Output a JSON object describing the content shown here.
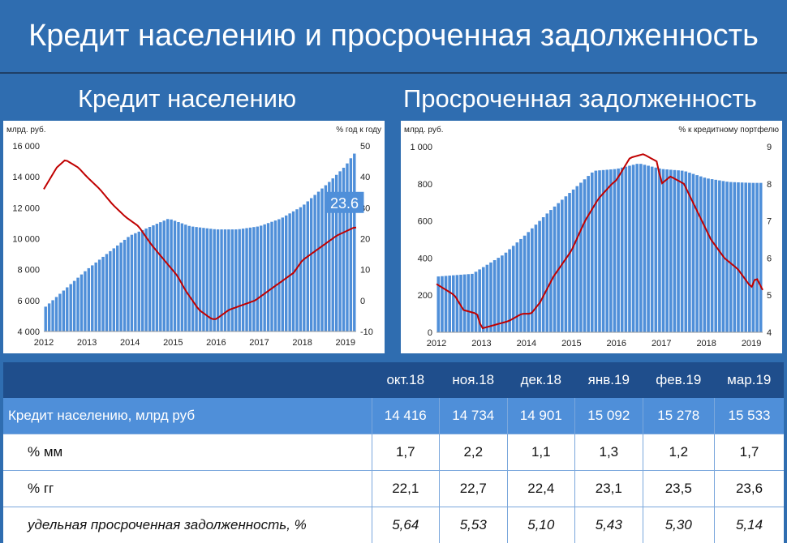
{
  "page": {
    "title": "Кредит населению и просроченная задолженность",
    "left_heading": "Кредит населению",
    "right_heading": "Просроченная задолженность"
  },
  "colors": {
    "background": "#2f6db0",
    "bars": "#4f8fd9",
    "line": "#c00000",
    "table_header": "#1f4e8c",
    "highlight_row": "#4f8fd9"
  },
  "chart_data": [
    {
      "type": "bar+line",
      "left_unit": "млрд. руб.",
      "right_unit": "% год к году",
      "y_left": {
        "min": 4000,
        "max": 16000,
        "ticks": [
          "4 000",
          "6 000",
          "8 000",
          "10 000",
          "12 000",
          "14 000",
          "16 000"
        ]
      },
      "y_right": {
        "min": -10,
        "max": 50,
        "ticks": [
          "-10",
          "0",
          "10",
          "20",
          "30",
          "40",
          "50"
        ]
      },
      "x_labels": [
        "2012",
        "2013",
        "2014",
        "2015",
        "2016",
        "2017",
        "2018",
        "2019"
      ],
      "annotation": "23.6",
      "bar_anchors": [
        [
          2012.0,
          5500
        ],
        [
          2013.0,
          8000
        ],
        [
          2014.0,
          10200
        ],
        [
          2014.9,
          11300
        ],
        [
          2015.4,
          10800
        ],
        [
          2016.0,
          10600
        ],
        [
          2016.5,
          10600
        ],
        [
          2017.0,
          10800
        ],
        [
          2017.5,
          11300
        ],
        [
          2018.0,
          12100
        ],
        [
          2018.6,
          13600
        ],
        [
          2019.0,
          14700
        ],
        [
          2019.2,
          15500
        ]
      ],
      "line_anchors": [
        [
          2012.0,
          36
        ],
        [
          2012.3,
          43
        ],
        [
          2012.5,
          45.5
        ],
        [
          2012.8,
          43
        ],
        [
          2013.0,
          40
        ],
        [
          2013.3,
          36
        ],
        [
          2013.6,
          31
        ],
        [
          2013.9,
          27
        ],
        [
          2014.2,
          24
        ],
        [
          2014.5,
          18
        ],
        [
          2014.8,
          13
        ],
        [
          2015.1,
          8
        ],
        [
          2015.3,
          3
        ],
        [
          2015.6,
          -3
        ],
        [
          2015.9,
          -6
        ],
        [
          2016.0,
          -6
        ],
        [
          2016.3,
          -3
        ],
        [
          2016.6,
          -1.5
        ],
        [
          2016.9,
          0
        ],
        [
          2017.0,
          1
        ],
        [
          2017.4,
          5
        ],
        [
          2017.8,
          9
        ],
        [
          2018.0,
          13
        ],
        [
          2018.4,
          17
        ],
        [
          2018.8,
          21
        ],
        [
          2019.2,
          23.6
        ]
      ]
    },
    {
      "type": "bar+line",
      "left_unit": "млрд. руб.",
      "right_unit": "% к кредитному портфелю",
      "y_left": {
        "min": 0,
        "max": 1000,
        "ticks": [
          "0",
          "200",
          "400",
          "600",
          "800",
          "1 000"
        ]
      },
      "y_right": {
        "min": 4,
        "max": 9,
        "ticks": [
          "4",
          "5",
          "6",
          "7",
          "8",
          "9"
        ]
      },
      "x_labels": [
        "2012",
        "2013",
        "2014",
        "2015",
        "2016",
        "2017",
        "2018",
        "2019"
      ],
      "bar_anchors": [
        [
          2012.0,
          300
        ],
        [
          2012.8,
          315
        ],
        [
          2013.5,
          420
        ],
        [
          2014.0,
          530
        ],
        [
          2014.5,
          650
        ],
        [
          2015.0,
          760
        ],
        [
          2015.5,
          870
        ],
        [
          2016.0,
          880
        ],
        [
          2016.5,
          910
        ],
        [
          2017.0,
          880
        ],
        [
          2017.5,
          870
        ],
        [
          2018.0,
          830
        ],
        [
          2018.5,
          810
        ],
        [
          2019.0,
          805
        ],
        [
          2019.2,
          805
        ]
      ],
      "line_anchors": [
        [
          2012.0,
          5.3
        ],
        [
          2012.4,
          5.0
        ],
        [
          2012.6,
          4.6
        ],
        [
          2012.9,
          4.5
        ],
        [
          2013.0,
          4.1
        ],
        [
          2013.3,
          4.2
        ],
        [
          2013.6,
          4.3
        ],
        [
          2013.9,
          4.5
        ],
        [
          2014.1,
          4.5
        ],
        [
          2014.3,
          4.8
        ],
        [
          2014.6,
          5.5
        ],
        [
          2015.0,
          6.2
        ],
        [
          2015.3,
          7.0
        ],
        [
          2015.6,
          7.6
        ],
        [
          2015.9,
          8.0
        ],
        [
          2016.0,
          8.1
        ],
        [
          2016.3,
          8.7
        ],
        [
          2016.6,
          8.8
        ],
        [
          2016.9,
          8.6
        ],
        [
          2017.0,
          8.0
        ],
        [
          2017.2,
          8.2
        ],
        [
          2017.5,
          8.0
        ],
        [
          2017.9,
          7.0
        ],
        [
          2018.1,
          6.5
        ],
        [
          2018.4,
          6.0
        ],
        [
          2018.7,
          5.7
        ],
        [
          2019.0,
          5.2
        ],
        [
          2019.1,
          5.5
        ],
        [
          2019.25,
          5.14
        ]
      ]
    }
  ],
  "table": {
    "columns": [
      "окт.18",
      "ноя.18",
      "дек.18",
      "янв.19",
      "фев.19",
      "мар.19"
    ],
    "rows": [
      {
        "label": "Кредит населению, млрд руб",
        "values": [
          "14 416",
          "14 734",
          "14 901",
          "15 092",
          "15 278",
          "15 533"
        ]
      },
      {
        "label": "% мм",
        "values": [
          "1,7",
          "2,2",
          "1,1",
          "1,3",
          "1,2",
          "1,7"
        ]
      },
      {
        "label": "% гг",
        "values": [
          "22,1",
          "22,7",
          "22,4",
          "23,1",
          "23,5",
          "23,6"
        ]
      },
      {
        "label": "удельная просроченная задолженность, %",
        "values": [
          "5,64",
          "5,53",
          "5,10",
          "5,43",
          "5,30",
          "5,14"
        ]
      }
    ]
  }
}
